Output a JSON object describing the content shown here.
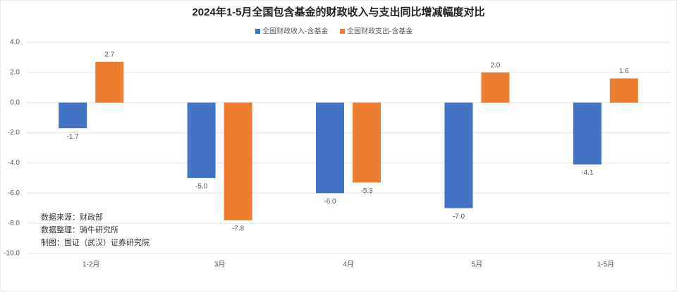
{
  "chart_data": {
    "type": "bar",
    "title": "2024年1-5月全国包含基金的财政收入与支出同比增减幅度对比",
    "categories": [
      "1-2月",
      "3月",
      "4月",
      "5月",
      "1-5月"
    ],
    "series": [
      {
        "name": "全国财政收入-含基金",
        "color": "#4472c4",
        "values": [
          -1.7,
          -5.0,
          -6.0,
          -7.0,
          -4.1
        ],
        "value_labels": [
          "-1.7",
          "-5.0",
          "-6.0",
          "-7.0",
          "-4.1"
        ]
      },
      {
        "name": "全国财政支出-含基金",
        "color": "#ed7d31",
        "values": [
          2.7,
          -7.8,
          -5.3,
          2.0,
          1.6
        ],
        "value_labels": [
          "2.7",
          "-7.8",
          "-5.3",
          "2.0",
          "1.6"
        ]
      }
    ],
    "ylim": [
      -10,
      4
    ],
    "yticks": [
      {
        "value": 4,
        "label": "4.0"
      },
      {
        "value": 2,
        "label": "2.0"
      },
      {
        "value": 0,
        "label": "0.0"
      },
      {
        "value": -2,
        "label": "-2.0"
      },
      {
        "value": -4,
        "label": "-4.0"
      },
      {
        "value": -6,
        "label": "-6.0"
      },
      {
        "value": -8,
        "label": "-8.0"
      },
      {
        "value": -10,
        "label": "-10.0"
      }
    ],
    "grid": true,
    "legend": "top",
    "annotations": [
      "数据来源：财政部",
      "数据整理：骑牛研究所",
      "制图：国证（武汉）证券研究院"
    ]
  }
}
